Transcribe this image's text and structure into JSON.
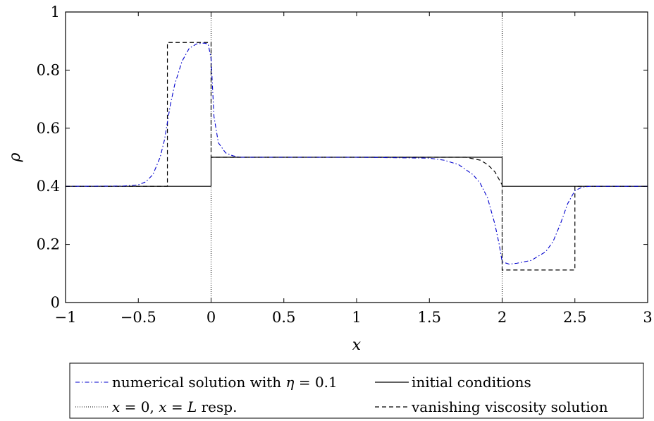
{
  "chart_data": {
    "type": "line",
    "title": "",
    "xlabel": "x",
    "ylabel": "ρ",
    "xlim": [
      -1,
      3
    ],
    "ylim": [
      0,
      1
    ],
    "xticks": [
      -1,
      -0.5,
      0,
      0.5,
      1,
      1.5,
      2,
      2.5,
      3
    ],
    "xtick_labels": [
      "−1",
      "−0.5",
      "0",
      "0.5",
      "1",
      "1.5",
      "2",
      "2.5",
      "3"
    ],
    "yticks": [
      0,
      0.2,
      0.4,
      0.6,
      0.8,
      1
    ],
    "ytick_labels": [
      "0",
      "0.2",
      "0.4",
      "0.6",
      "0.8",
      "1"
    ],
    "grid": false,
    "legend_position": "bottom",
    "series": [
      {
        "name": "numerical solution with η = 0.1",
        "color": "#0000cc",
        "dash": "dashdot",
        "x": [
          -1,
          -0.6,
          -0.5,
          -0.45,
          -0.4,
          -0.35,
          -0.32,
          -0.3,
          -0.28,
          -0.25,
          -0.2,
          -0.15,
          -0.1,
          -0.05,
          -0.02,
          0,
          0.02,
          0.05,
          0.1,
          0.15,
          0.2,
          0.5,
          1.0,
          1.5,
          1.6,
          1.7,
          1.8,
          1.85,
          1.9,
          1.95,
          1.98,
          2.0,
          2.05,
          2.1,
          2.2,
          2.3,
          2.35,
          2.4,
          2.45,
          2.5,
          2.55,
          2.6,
          3
        ],
        "y": [
          0.4,
          0.401,
          0.405,
          0.415,
          0.44,
          0.5,
          0.56,
          0.62,
          0.68,
          0.75,
          0.83,
          0.875,
          0.89,
          0.893,
          0.89,
          0.84,
          0.64,
          0.55,
          0.515,
          0.505,
          0.5,
          0.5,
          0.5,
          0.497,
          0.49,
          0.475,
          0.44,
          0.41,
          0.36,
          0.27,
          0.2,
          0.14,
          0.132,
          0.135,
          0.145,
          0.175,
          0.21,
          0.27,
          0.34,
          0.385,
          0.397,
          0.4,
          0.4
        ]
      },
      {
        "name": "initial conditions",
        "color": "#000000",
        "dash": "solid",
        "x": [
          -1,
          0,
          0,
          2,
          2,
          3
        ],
        "y": [
          0.4,
          0.4,
          0.5,
          0.5,
          0.4,
          0.4
        ]
      },
      {
        "name": "x = 0, x = L resp.",
        "color": "#000000",
        "dash": "dotted",
        "vlines": [
          0,
          2
        ]
      },
      {
        "name": "vanishing viscosity solution",
        "color": "#000000",
        "dash": "dashed",
        "x": [
          -1,
          -0.3,
          -0.3,
          0,
          0,
          1.5,
          1.75,
          1.85,
          1.9,
          1.95,
          2.0,
          2.0,
          2.5,
          2.5,
          3
        ],
        "y": [
          0.4,
          0.4,
          0.895,
          0.895,
          0.5,
          0.5,
          0.5,
          0.49,
          0.475,
          0.45,
          0.405,
          0.112,
          0.112,
          0.4,
          0.4
        ]
      }
    ]
  },
  "legend": {
    "entries": [
      {
        "prefix": "numerical solution with ",
        "math": "η",
        "suffix": " = 0.1"
      },
      {
        "prefix": "initial conditions",
        "math": "",
        "suffix": ""
      },
      {
        "prefix": "",
        "math": "x",
        "suffix": " = 0, "
      },
      {
        "prefix": "vanishing viscosity solution",
        "math": "",
        "suffix": ""
      }
    ],
    "entry3_tail_math": "x",
    "entry3_tail_text": " = ",
    "entry3_tail_L": "L",
    "entry3_tail_end": " resp."
  }
}
